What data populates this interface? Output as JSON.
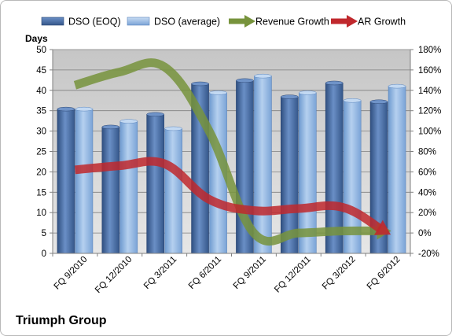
{
  "company": "Triumph Group",
  "chart_data": {
    "type": "bar",
    "title": "",
    "xlabel": "",
    "ylabel": "Days",
    "categories": [
      "FQ 9/2010",
      "FQ 12/2010",
      "FQ 3/2011",
      "FQ 6/2011",
      "FQ 9/2011",
      "FQ 12/2011",
      "FQ 3/2012",
      "FQ 6/2012"
    ],
    "ylim": [
      0,
      50
    ],
    "y_ticks": [
      0,
      5,
      10,
      15,
      20,
      25,
      30,
      35,
      40,
      45,
      50
    ],
    "y2lim": [
      -20,
      180
    ],
    "y2_ticks": [
      "-20%",
      "0%",
      "20%",
      "40%",
      "60%",
      "80%",
      "100%",
      "120%",
      "140%",
      "160%",
      "180%"
    ],
    "y2_tick_values": [
      -20,
      0,
      20,
      40,
      60,
      80,
      100,
      120,
      140,
      160,
      180
    ],
    "grid": true,
    "legend": "top",
    "series": [
      {
        "name": "DSO (EOQ)",
        "type": "bar",
        "axis": "left",
        "color": "#4a6fa5",
        "values": [
          35.4,
          31.0,
          34.1,
          41.6,
          42.4,
          38.4,
          41.8,
          37.2
        ]
      },
      {
        "name": "DSO (average)",
        "type": "bar",
        "axis": "left",
        "color": "#8db4e2",
        "values": [
          35.4,
          32.4,
          30.6,
          39.4,
          43.5,
          39.4,
          37.5,
          41.0
        ]
      },
      {
        "name": "Revenue Growth",
        "type": "line",
        "axis": "right",
        "color": "#77933c",
        "unit": "%",
        "values": [
          145,
          158,
          163,
          100,
          0,
          0,
          2,
          2
        ]
      },
      {
        "name": "AR Growth",
        "type": "line",
        "axis": "right",
        "color": "#c0282d",
        "unit": "%",
        "values": [
          62,
          66,
          68,
          33,
          22,
          24,
          25,
          0
        ]
      }
    ]
  }
}
